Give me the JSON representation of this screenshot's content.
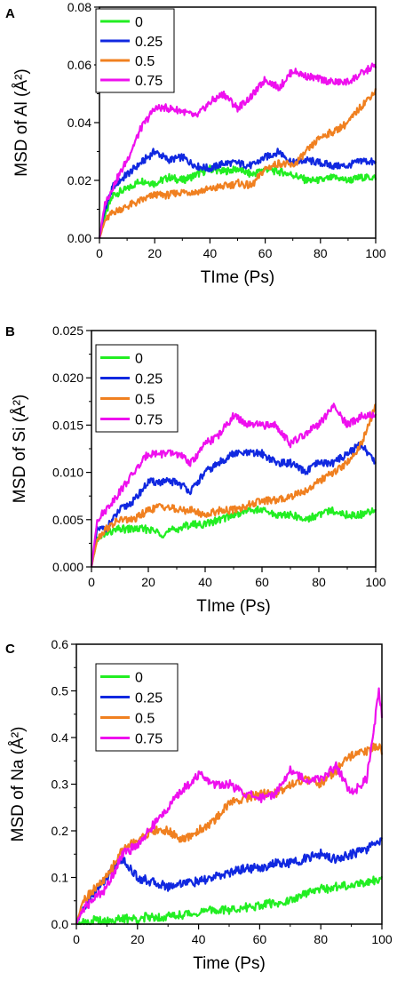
{
  "chart_data": [
    {
      "panel": "A",
      "type": "line",
      "xlabel": "TIme (Ps)",
      "ylabel": "MSD of Al (Å²)",
      "xlim": [
        0,
        100
      ],
      "ylim": [
        0,
        0.08
      ],
      "xticks": [
        "0",
        "20",
        "40",
        "60",
        "80",
        "100"
      ],
      "yticks": [
        "0.00",
        "0.02",
        "0.04",
        "0.06",
        "0.08"
      ],
      "legend": "top-left",
      "x": [
        0,
        2,
        5,
        10,
        15,
        20,
        25,
        30,
        35,
        40,
        45,
        50,
        55,
        60,
        65,
        70,
        75,
        80,
        85,
        90,
        95,
        100
      ],
      "series": [
        {
          "name": "0",
          "color": "#22ee22",
          "values": [
            0.0,
            0.008,
            0.015,
            0.017,
            0.02,
            0.019,
            0.021,
            0.02,
            0.022,
            0.024,
            0.023,
            0.024,
            0.022,
            0.024,
            0.023,
            0.022,
            0.02,
            0.02,
            0.021,
            0.02,
            0.021,
            0.021
          ]
        },
        {
          "name": "0.25",
          "color": "#1028e0",
          "values": [
            0.0,
            0.01,
            0.018,
            0.022,
            0.026,
            0.03,
            0.027,
            0.028,
            0.025,
            0.024,
            0.026,
            0.026,
            0.025,
            0.028,
            0.03,
            0.026,
            0.027,
            0.026,
            0.025,
            0.025,
            0.027,
            0.026
          ]
        },
        {
          "name": "0.5",
          "color": "#f08020",
          "values": [
            0.0,
            0.006,
            0.009,
            0.011,
            0.013,
            0.015,
            0.015,
            0.016,
            0.016,
            0.017,
            0.018,
            0.019,
            0.018,
            0.024,
            0.026,
            0.025,
            0.03,
            0.035,
            0.037,
            0.04,
            0.046,
            0.051
          ]
        },
        {
          "name": "0.75",
          "color": "#ee10ee",
          "values": [
            0.0,
            0.012,
            0.018,
            0.027,
            0.038,
            0.045,
            0.045,
            0.044,
            0.042,
            0.047,
            0.05,
            0.045,
            0.049,
            0.055,
            0.052,
            0.058,
            0.056,
            0.055,
            0.054,
            0.054,
            0.057,
            0.06
          ]
        }
      ]
    },
    {
      "panel": "B",
      "type": "line",
      "xlabel": "TIme (Ps)",
      "ylabel": "MSD of Si (Å²)",
      "xlim": [
        0,
        100
      ],
      "ylim": [
        0,
        0.025
      ],
      "xticks": [
        "0",
        "20",
        "40",
        "60",
        "80",
        "100"
      ],
      "yticks": [
        "0.000",
        "0.005",
        "0.010",
        "0.015",
        "0.020",
        "0.025"
      ],
      "legend": "top-left",
      "x": [
        0,
        2,
        5,
        10,
        15,
        20,
        25,
        30,
        35,
        40,
        45,
        50,
        55,
        60,
        65,
        70,
        75,
        80,
        85,
        90,
        95,
        100
      ],
      "series": [
        {
          "name": "0",
          "color": "#22ee22",
          "values": [
            0.0,
            0.003,
            0.0035,
            0.004,
            0.004,
            0.004,
            0.0035,
            0.004,
            0.0045,
            0.0045,
            0.005,
            0.0055,
            0.006,
            0.006,
            0.0055,
            0.0055,
            0.005,
            0.0055,
            0.006,
            0.0055,
            0.0055,
            0.006
          ]
        },
        {
          "name": "0.25",
          "color": "#1028e0",
          "values": [
            0.0,
            0.004,
            0.004,
            0.006,
            0.007,
            0.009,
            0.009,
            0.009,
            0.008,
            0.01,
            0.011,
            0.012,
            0.012,
            0.012,
            0.011,
            0.011,
            0.01,
            0.011,
            0.011,
            0.012,
            0.013,
            0.011
          ]
        },
        {
          "name": "0.5",
          "color": "#f08020",
          "values": [
            0.0,
            0.003,
            0.004,
            0.005,
            0.005,
            0.006,
            0.0065,
            0.006,
            0.006,
            0.0055,
            0.006,
            0.006,
            0.0065,
            0.007,
            0.007,
            0.0075,
            0.008,
            0.009,
            0.01,
            0.011,
            0.013,
            0.017
          ]
        },
        {
          "name": "0.75",
          "color": "#ee10ee",
          "values": [
            0.0,
            0.005,
            0.006,
            0.008,
            0.01,
            0.012,
            0.012,
            0.012,
            0.011,
            0.013,
            0.014,
            0.016,
            0.015,
            0.015,
            0.015,
            0.013,
            0.014,
            0.015,
            0.017,
            0.015,
            0.016,
            0.016
          ]
        }
      ]
    },
    {
      "panel": "C",
      "type": "line",
      "xlabel": "Time (Ps)",
      "ylabel": "MSD of Na (Å²)",
      "xlim": [
        0,
        100
      ],
      "ylim": [
        0,
        0.6
      ],
      "xticks": [
        "0",
        "20",
        "40",
        "60",
        "80",
        "100"
      ],
      "yticks": [
        "0.0",
        "0.1",
        "0.2",
        "0.3",
        "0.4",
        "0.5",
        "0.6"
      ],
      "legend": "top-left",
      "x": [
        0,
        2,
        5,
        10,
        15,
        20,
        25,
        30,
        35,
        40,
        45,
        50,
        55,
        60,
        65,
        70,
        75,
        80,
        85,
        90,
        95,
        97,
        99,
        100
      ],
      "series": [
        {
          "name": "0",
          "color": "#22ee22",
          "values": [
            0.0,
            0.005,
            0.007,
            0.008,
            0.01,
            0.012,
            0.015,
            0.017,
            0.02,
            0.025,
            0.03,
            0.03,
            0.035,
            0.04,
            0.045,
            0.05,
            0.065,
            0.075,
            0.08,
            0.085,
            0.09,
            0.095,
            0.098,
            0.1
          ]
        },
        {
          "name": "0.25",
          "color": "#1028e0",
          "values": [
            0.0,
            0.03,
            0.06,
            0.1,
            0.14,
            0.1,
            0.09,
            0.08,
            0.09,
            0.09,
            0.1,
            0.11,
            0.12,
            0.12,
            0.13,
            0.13,
            0.14,
            0.15,
            0.14,
            0.15,
            0.16,
            0.17,
            0.18,
            0.18
          ]
        },
        {
          "name": "0.5",
          "color": "#f08020",
          "values": [
            0.0,
            0.05,
            0.07,
            0.1,
            0.16,
            0.18,
            0.2,
            0.2,
            0.18,
            0.2,
            0.22,
            0.26,
            0.27,
            0.28,
            0.28,
            0.3,
            0.31,
            0.3,
            0.33,
            0.36,
            0.37,
            0.38,
            0.38,
            0.37
          ]
        },
        {
          "name": "0.75",
          "color": "#ee10ee",
          "values": [
            0.0,
            0.03,
            0.05,
            0.08,
            0.15,
            0.17,
            0.21,
            0.25,
            0.29,
            0.32,
            0.3,
            0.3,
            0.28,
            0.27,
            0.28,
            0.33,
            0.31,
            0.31,
            0.34,
            0.28,
            0.31,
            0.4,
            0.5,
            0.45
          ]
        }
      ]
    }
  ]
}
